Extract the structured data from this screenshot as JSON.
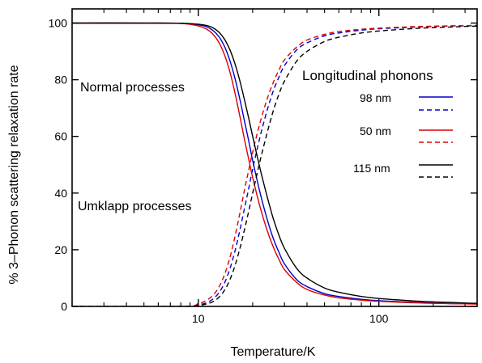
{
  "chart_data": {
    "type": "line",
    "title": "",
    "xlabel": "Temperature/K",
    "ylabel": "% 3–Phonon scattering relaxation rate",
    "xscale": "log",
    "xlim": [
      2,
      350
    ],
    "ylim": [
      0,
      105
    ],
    "x_ticks": [
      10,
      100
    ],
    "y_ticks": [
      0,
      20,
      40,
      60,
      80,
      100
    ],
    "grid": false,
    "annotations": [
      "Normal processes",
      "Umklapp processes"
    ],
    "legend": {
      "title": "Longitudinal phonons",
      "placement": "top-right",
      "entries": [
        "98 nm",
        "50 nm",
        "115 nm"
      ]
    },
    "series": [
      {
        "name": "98 nm",
        "color": "#0000cc",
        "style": "solid",
        "x": [
          2,
          5,
          8,
          10,
          11,
          12,
          13,
          14,
          15,
          16,
          17,
          18,
          19,
          20,
          22,
          24,
          26,
          28,
          30,
          35,
          40,
          50,
          60,
          80,
          100,
          150,
          200,
          250,
          300,
          350
        ],
        "y": [
          100,
          100,
          99.9,
          99.4,
          98.8,
          97.5,
          95.2,
          91.6,
          86.5,
          80.2,
          73,
          65.5,
          58.5,
          51.5,
          40,
          31,
          24,
          19,
          15,
          9.5,
          7,
          4.5,
          3.5,
          2.5,
          2,
          1.5,
          1.2,
          1,
          1,
          0.9
        ]
      },
      {
        "name": "98 nm",
        "color": "#0000cc",
        "style": "dashed",
        "x": [
          2,
          8,
          10,
          11,
          12,
          13,
          14,
          15,
          16,
          17,
          18,
          19,
          20,
          22,
          24,
          26,
          28,
          30,
          35,
          40,
          50,
          60,
          80,
          100,
          150,
          200,
          250,
          300,
          350
        ],
        "y": [
          0,
          0,
          0.6,
          1.2,
          2.5,
          4.8,
          8.4,
          13.5,
          19.8,
          27,
          34.5,
          41.5,
          48.5,
          60,
          69,
          76,
          81,
          85,
          90.5,
          93,
          95.5,
          96.5,
          97.5,
          98,
          98.5,
          98.8,
          99,
          99,
          99.1
        ]
      },
      {
        "name": "50 nm",
        "color": "#dd0000",
        "style": "solid",
        "x": [
          2,
          5,
          8,
          10,
          11,
          12,
          13,
          14,
          15,
          16,
          17,
          18,
          19,
          20,
          22,
          24,
          26,
          28,
          30,
          35,
          40,
          50,
          60,
          80,
          100,
          150,
          200,
          250,
          300,
          350
        ],
        "y": [
          100,
          100,
          99.9,
          99,
          98,
          96.2,
          93.2,
          88.6,
          82.5,
          75,
          67,
          59,
          52,
          45.5,
          35,
          27,
          21,
          16.5,
          13,
          8.5,
          6,
          4,
          3,
          2.2,
          1.8,
          1.3,
          1.1,
          1,
          0.9,
          0.8
        ]
      },
      {
        "name": "50 nm",
        "color": "#dd0000",
        "style": "dashed",
        "x": [
          2,
          8,
          10,
          11,
          12,
          13,
          14,
          15,
          16,
          17,
          18,
          19,
          20,
          22,
          24,
          26,
          28,
          30,
          35,
          40,
          50,
          60,
          80,
          100,
          150,
          200,
          250,
          300,
          350
        ],
        "y": [
          0,
          0,
          1,
          2,
          3.8,
          6.8,
          11.4,
          17.5,
          25,
          33,
          41,
          48,
          54.5,
          65,
          73,
          79,
          83.5,
          87,
          91.5,
          94,
          96,
          97,
          97.8,
          98.2,
          98.7,
          98.9,
          99,
          99.1,
          99.2
        ]
      },
      {
        "name": "115 nm",
        "color": "#000000",
        "style": "solid",
        "x": [
          2,
          5,
          8,
          10,
          11,
          12,
          13,
          14,
          15,
          16,
          17,
          18,
          19,
          20,
          22,
          24,
          26,
          28,
          30,
          35,
          40,
          50,
          60,
          80,
          100,
          150,
          200,
          250,
          300,
          350
        ],
        "y": [
          100,
          100,
          99.95,
          99.6,
          99.2,
          98.4,
          96.8,
          94.2,
          90.4,
          85.4,
          79.5,
          73,
          66.5,
          60,
          48.5,
          39,
          31,
          25,
          20.5,
          13.5,
          10,
          6.5,
          5,
          3.5,
          2.8,
          2,
          1.6,
          1.4,
          1.2,
          1.1
        ]
      },
      {
        "name": "115 nm",
        "color": "#000000",
        "style": "dashed",
        "x": [
          2,
          8,
          10,
          11,
          12,
          13,
          14,
          15,
          16,
          17,
          18,
          19,
          20,
          22,
          24,
          26,
          28,
          30,
          35,
          40,
          50,
          60,
          80,
          100,
          150,
          200,
          250,
          300,
          350
        ],
        "y": [
          0,
          0,
          0.4,
          0.8,
          1.6,
          3.2,
          5.8,
          9.6,
          14.6,
          20.5,
          27,
          33.5,
          40,
          51.5,
          61,
          69,
          75,
          79.5,
          86.5,
          90,
          93.5,
          95,
          96.5,
          97.2,
          98,
          98.4,
          98.6,
          98.8,
          98.9
        ]
      }
    ]
  }
}
